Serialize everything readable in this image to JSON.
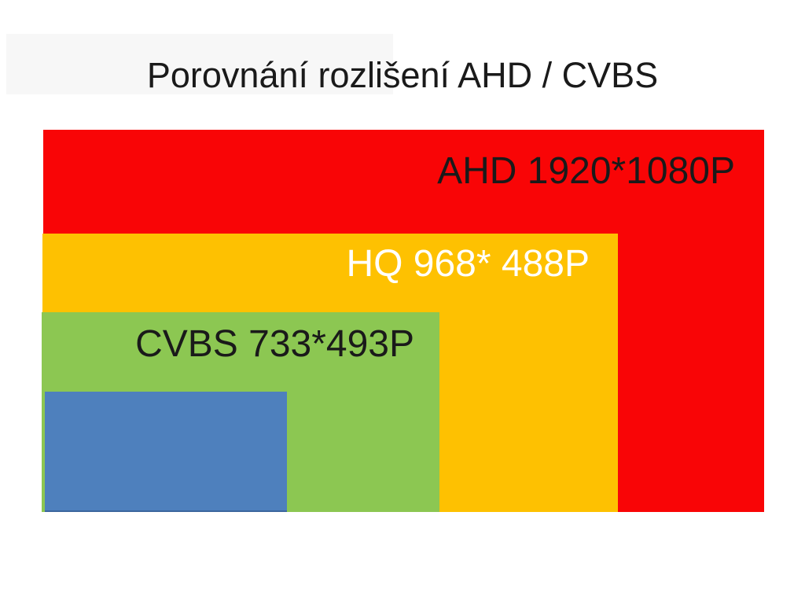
{
  "title": "Porovnání rozlišení AHD / CVBS",
  "background_color": "#FFFFFF",
  "title_color": "#1A1A1A",
  "chart_data": {
    "type": "area",
    "subtype": "nested-rectangle-size-comparison",
    "title": "Porovnání rozlišení AHD / CVBS",
    "xlabel": "",
    "ylabel": "",
    "axes_shown": false,
    "grid": false,
    "legend_position": "none",
    "anchor": "bottom-left",
    "layers": [
      {
        "name": "AHD",
        "label": "AHD 1920*1080P",
        "resolution_width": 1920,
        "resolution_height": 1080,
        "color": "#F90506",
        "label_color": "#1A1A1A"
      },
      {
        "name": "HQ",
        "label": "HQ 968* 488P",
        "resolution_width": 968,
        "resolution_height": 488,
        "color": "#FEC101",
        "label_color": "#FFFFFF"
      },
      {
        "name": "CVBS",
        "label": "CVBS 733*493P",
        "resolution_width": 733,
        "resolution_height": 493,
        "color": "#8CC752",
        "label_color": "#1A1A1A"
      },
      {
        "name": "smallest-unlabeled",
        "label": "",
        "color": "#4E80BD",
        "label_color": "#1A1A1A"
      }
    ]
  }
}
